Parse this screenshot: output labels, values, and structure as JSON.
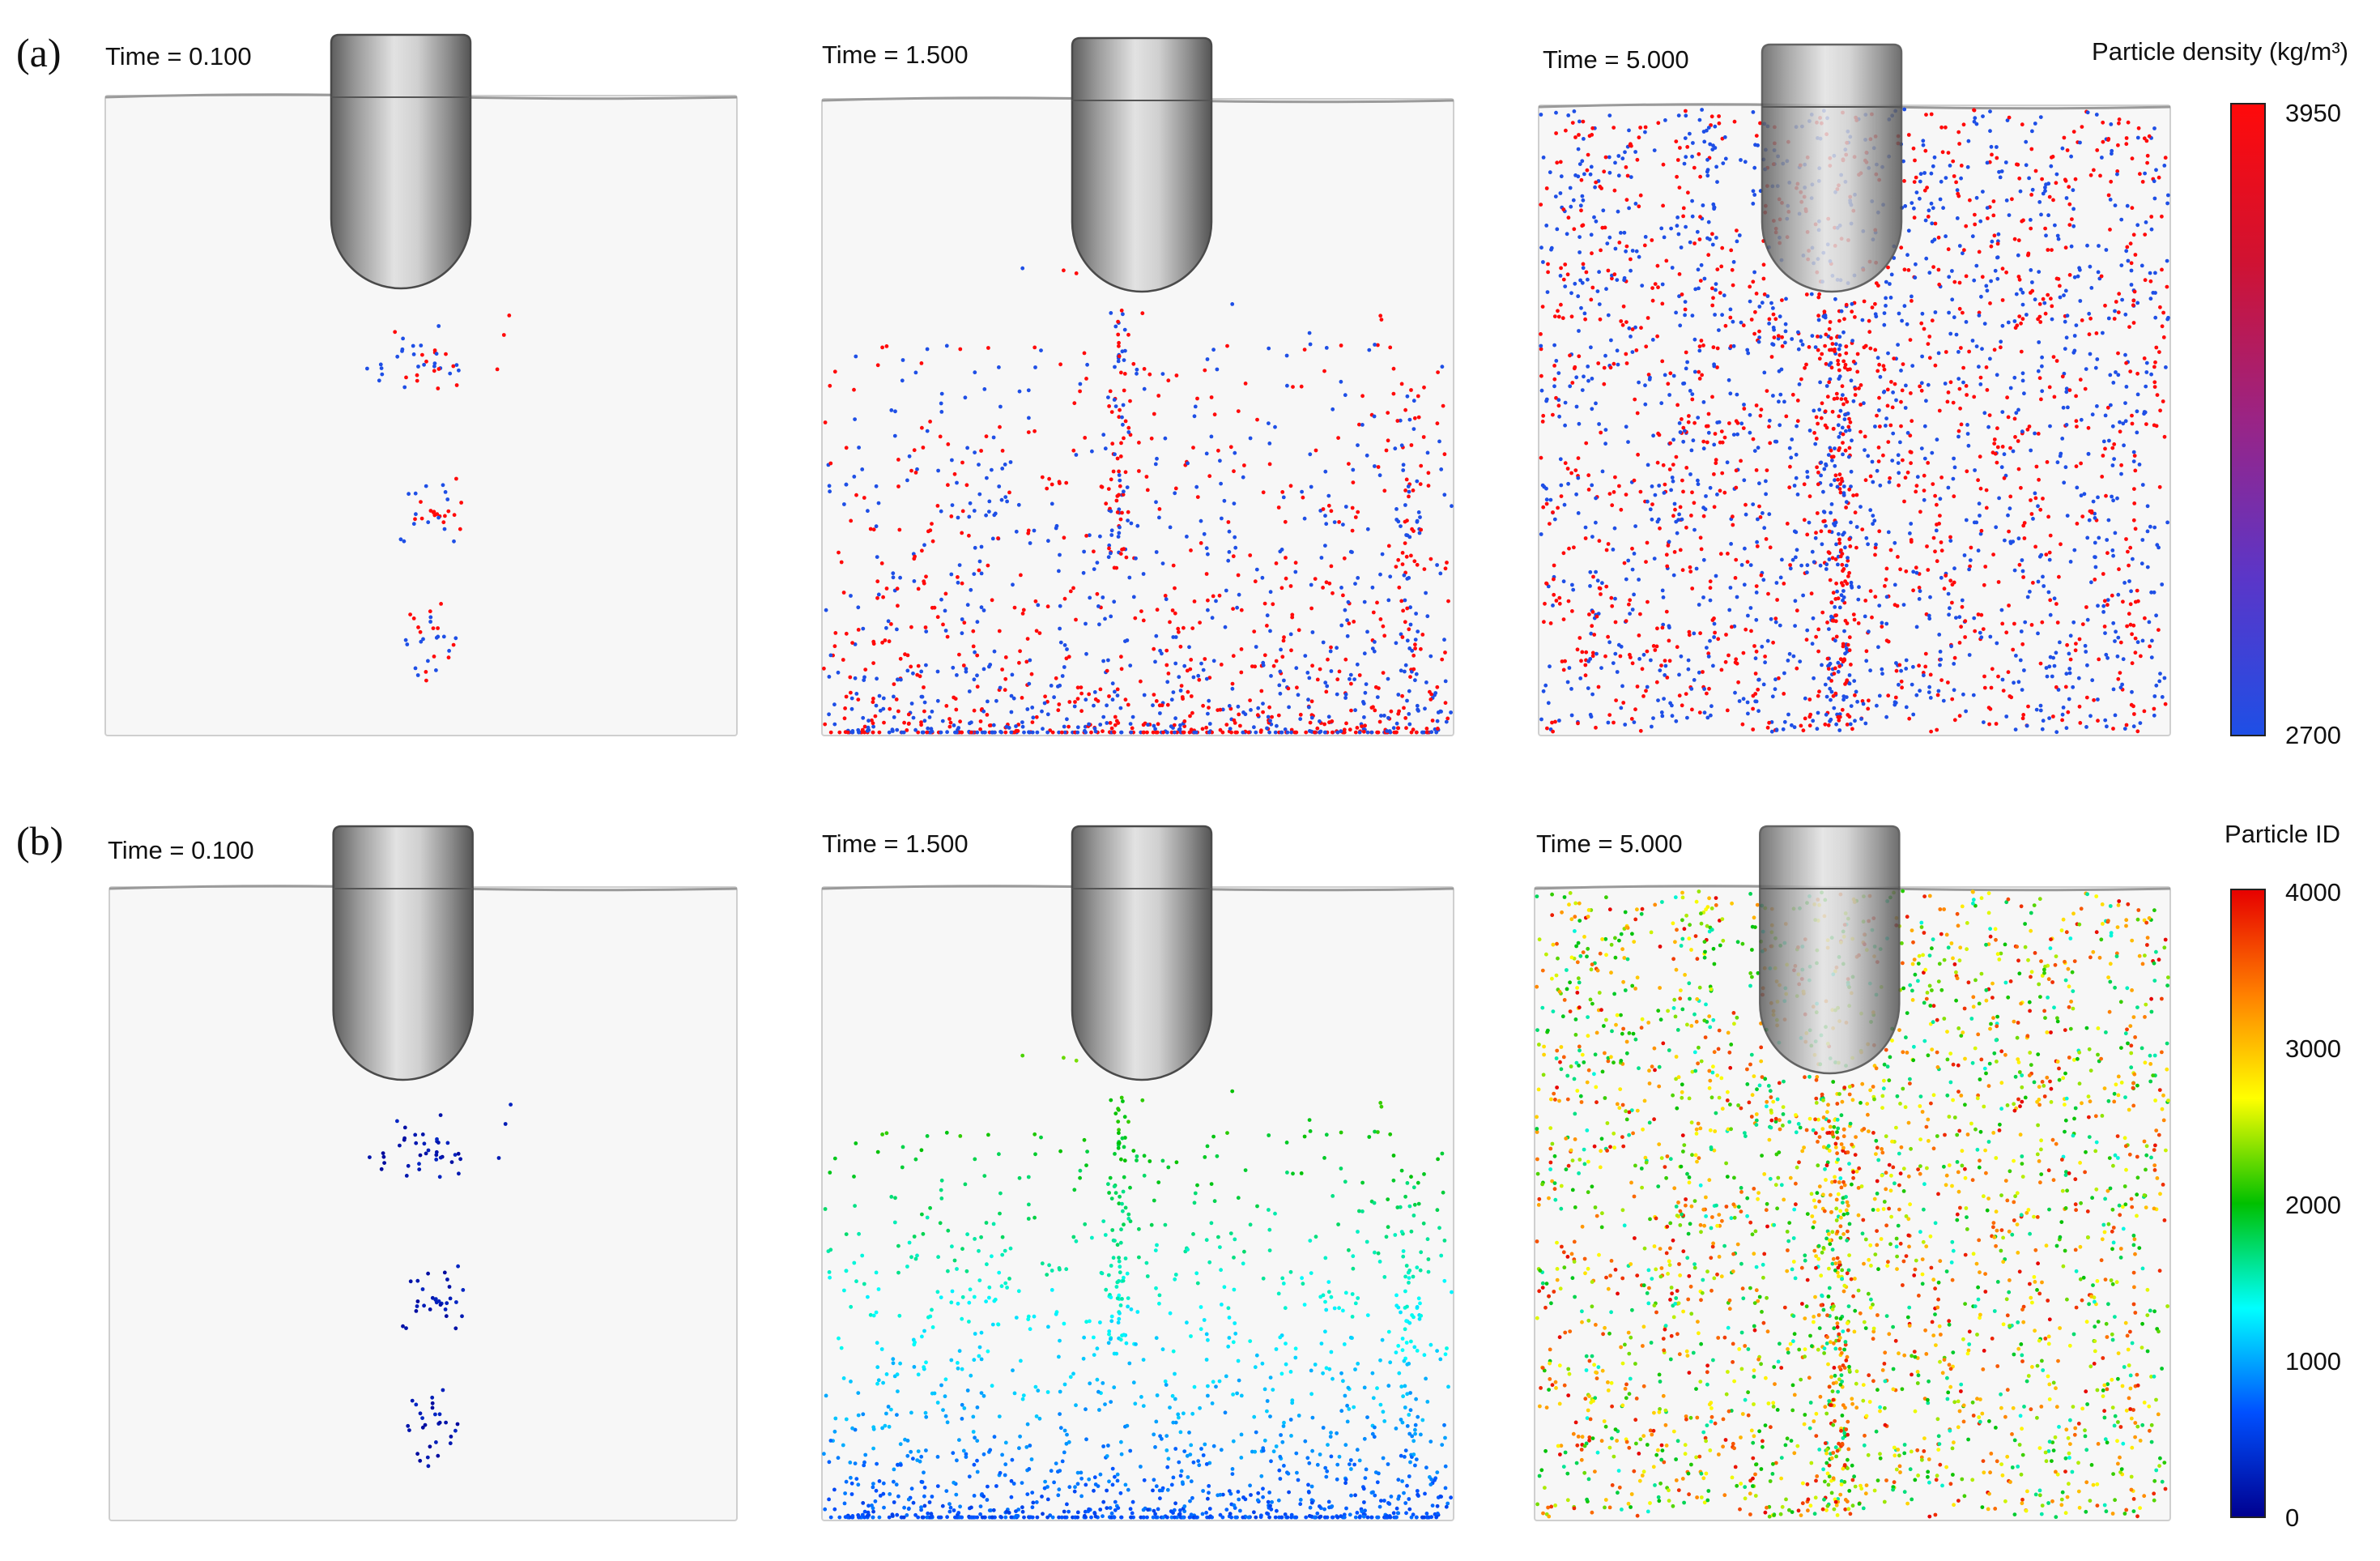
{
  "rows": [
    {
      "label": "(a)",
      "colorbar": {
        "title": "Particle density (kg/m³)",
        "ticks": [
          "3950",
          "2700"
        ],
        "min": 2700,
        "max": 3950,
        "colormap": [
          "#1e4fe6",
          "#5b36c8",
          "#9a2485",
          "#d01232",
          "#ff0a0a"
        ]
      },
      "panels": [
        {
          "time_label": "Time = 0.100",
          "particle_stage": "early"
        },
        {
          "time_label": "Time = 1.500",
          "particle_stage": "settling"
        },
        {
          "time_label": "Time = 5.000",
          "particle_stage": "mixed"
        }
      ]
    },
    {
      "label": "(b)",
      "colorbar": {
        "title": "Particle ID",
        "ticks": [
          "4000",
          "3000",
          "2000",
          "1000",
          "0"
        ],
        "min": 0,
        "max": 4000,
        "colormap": [
          "#00008f",
          "#0050ff",
          "#00ffff",
          "#00c000",
          "#ffff00",
          "#ff8000",
          "#e60000"
        ]
      },
      "panels": [
        {
          "time_label": "Time = 0.100",
          "particle_stage": "early"
        },
        {
          "time_label": "Time = 1.500",
          "particle_stage": "settling"
        },
        {
          "time_label": "Time = 5.000",
          "particle_stage": "mixed"
        }
      ]
    }
  ],
  "colors": {
    "tank_fill": "#f7f7f7",
    "tank_edge": "#cfcfcf",
    "tool_dark": "#6e6e6e",
    "tool_light": "#dcdcdc"
  }
}
